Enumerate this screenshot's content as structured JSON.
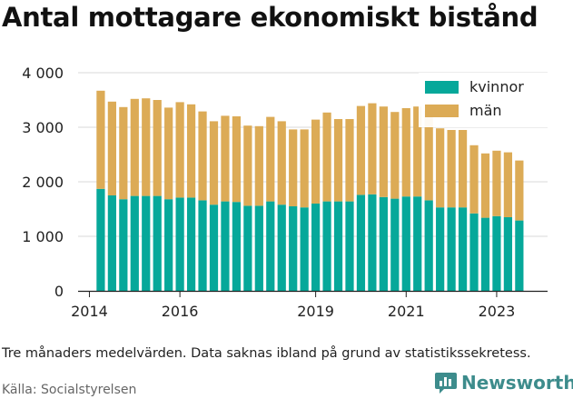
{
  "title": "Antal mottagare ekonomiskt bistånd",
  "note": "Tre månaders medelvärden. Data saknas ibland på grund av statistikssekretess.",
  "source": "Källa: Socialstyrelsen",
  "brand": "Newsworthy",
  "colors": {
    "kvinnor": "#06a89a",
    "man": "#dcab56",
    "grid": "#d9d9d9",
    "brand": "#3d8c8c"
  },
  "chart_data": {
    "type": "bar",
    "stacked": true,
    "ylim": [
      0,
      4000
    ],
    "yticks": [
      0,
      1000,
      2000,
      3000,
      4000
    ],
    "ytick_labels": [
      "0",
      "1 000",
      "2 000",
      "3 000",
      "4 000"
    ],
    "xlim": [
      2013.75,
      2024.125
    ],
    "xticks": [
      2014,
      2016,
      2019,
      2021,
      2023
    ],
    "xtick_labels": [
      "2014",
      "2016",
      "2019",
      "2021",
      "2023"
    ],
    "legend_position": "top-right",
    "x": [
      2014.25,
      2014.5,
      2014.75,
      2015.0,
      2015.25,
      2015.5,
      2015.75,
      2016.0,
      2016.25,
      2016.5,
      2016.75,
      2017.0,
      2017.25,
      2017.5,
      2017.75,
      2018.0,
      2018.25,
      2018.5,
      2018.75,
      2019.0,
      2019.25,
      2019.5,
      2019.75,
      2020.0,
      2020.25,
      2020.5,
      2020.75,
      2021.0,
      2021.25,
      2021.5,
      2021.75,
      2022.0,
      2022.25,
      2022.5,
      2022.75,
      2023.0,
      2023.25,
      2023.5
    ],
    "series": [
      {
        "name": "kvinnor",
        "values": [
          1870,
          1750,
          1680,
          1740,
          1740,
          1740,
          1680,
          1710,
          1710,
          1660,
          1580,
          1640,
          1630,
          1560,
          1560,
          1640,
          1580,
          1550,
          1530,
          1600,
          1640,
          1640,
          1640,
          1760,
          1770,
          1720,
          1690,
          1730,
          1730,
          1660,
          1530,
          1530,
          1530,
          1420,
          1340,
          1370,
          1350,
          1290
        ]
      },
      {
        "name": "män",
        "values": [
          1800,
          1720,
          1690,
          1780,
          1790,
          1760,
          1680,
          1750,
          1710,
          1630,
          1530,
          1570,
          1570,
          1470,
          1460,
          1550,
          1530,
          1410,
          1430,
          1540,
          1630,
          1510,
          1510,
          1630,
          1670,
          1660,
          1590,
          1620,
          1650,
          1640,
          1450,
          1420,
          1420,
          1250,
          1180,
          1200,
          1190,
          1100
        ]
      }
    ]
  }
}
